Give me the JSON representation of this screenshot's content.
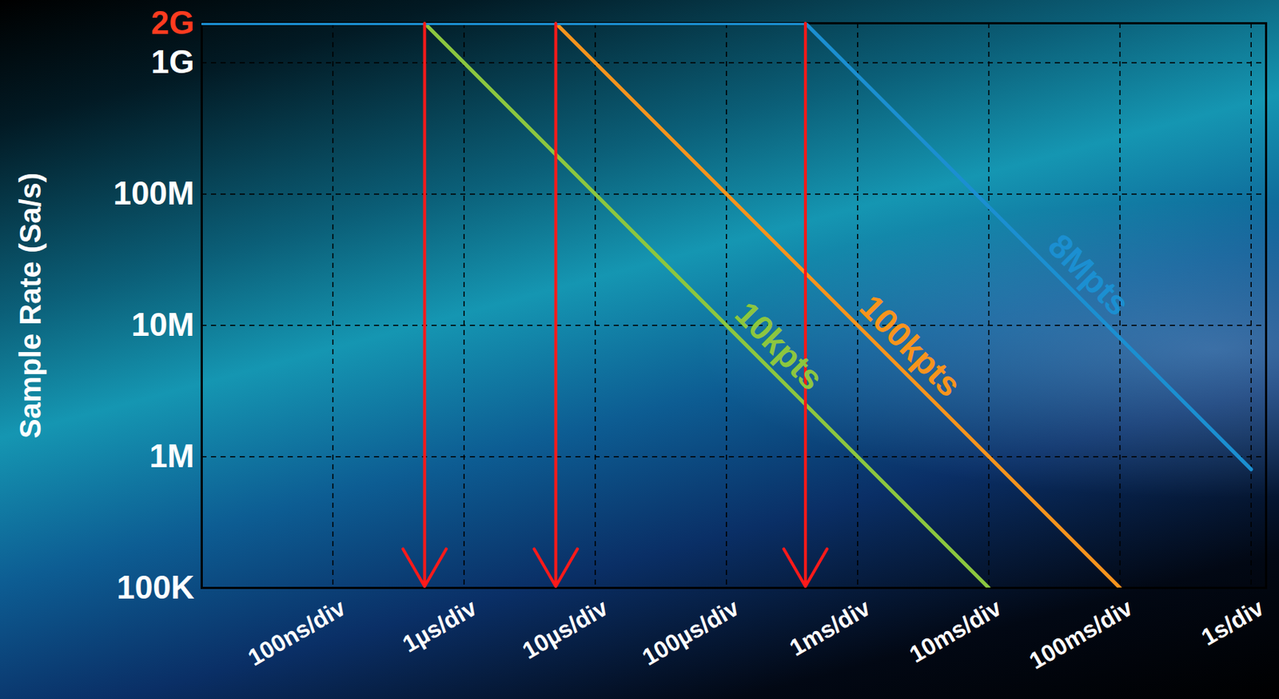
{
  "chart_data": {
    "type": "line",
    "y_label": "Sample Rate (Sa/s)",
    "log": true,
    "grid": true,
    "xlim": [
      1e-08,
      1.3
    ],
    "ylim": [
      100000,
      2000000000
    ],
    "xticks": [
      {
        "value": 1e-07,
        "label": "100ns/div"
      },
      {
        "value": 1e-06,
        "label": "1µs/div"
      },
      {
        "value": 1e-05,
        "label": "10µs/div"
      },
      {
        "value": 0.0001,
        "label": "100µs/div"
      },
      {
        "value": 0.001,
        "label": "1ms/div"
      },
      {
        "value": 0.01,
        "label": "10ms/div"
      },
      {
        "value": 0.1,
        "label": "100ms/div"
      },
      {
        "value": 1,
        "label": "1s/div"
      }
    ],
    "yticks": [
      {
        "value": 100000,
        "label": "100K"
      },
      {
        "value": 1000000,
        "label": "1M"
      },
      {
        "value": 10000000,
        "label": "10M"
      },
      {
        "value": 100000000,
        "label": "100M"
      },
      {
        "value": 1000000000,
        "label": "1G"
      },
      {
        "value": 2000000000,
        "label": "2G",
        "color": "#ff3b1f"
      }
    ],
    "series": [
      {
        "name": "10kpts",
        "color": "#8cc63f",
        "x": [
          1e-08,
          5e-07,
          0.01
        ],
        "values": [
          2000000000,
          2000000000,
          100000
        ]
      },
      {
        "name": "100kpts",
        "color": "#f7941d",
        "x": [
          1e-08,
          5e-06,
          0.1
        ],
        "values": [
          2000000000,
          2000000000,
          100000
        ]
      },
      {
        "name": "8Mpts",
        "color": "#1b8fd1",
        "x": [
          1e-08,
          0.0004,
          1
        ],
        "values": [
          2000000000,
          2000000000,
          800000
        ]
      }
    ],
    "arrows": {
      "color": "#ff1a1a",
      "x": [
        5e-07,
        5e-06,
        0.0004
      ]
    }
  }
}
